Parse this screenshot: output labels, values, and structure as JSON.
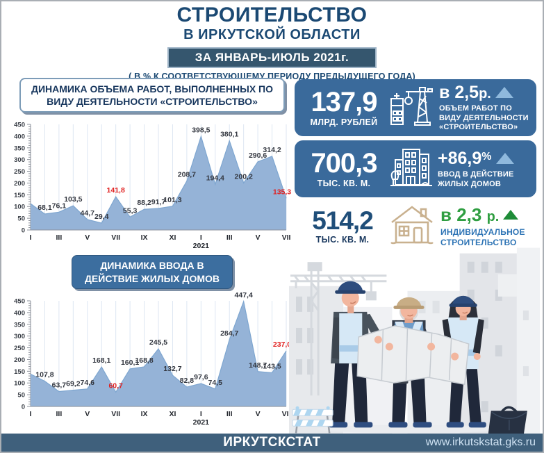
{
  "header": {
    "title": "СТРОИТЕЛЬСТВО",
    "subtitle": "В ИРКУТСКОЙ ОБЛАСТИ",
    "period_badge": "ЗА ЯНВАРЬ-ИЮЛЬ 2021г.",
    "note": "( В % К СООТВЕТСТВУЮЩЕМУ ПЕРИОДУ ПРЕДЫДУЩЕГО ГОДА)"
  },
  "stats": [
    {
      "value": "137,9",
      "unit": "МЛРД. РУБЛЕЙ",
      "change": "в 2,5",
      "change_suffix": "р.",
      "trend": "up",
      "icon": "crane-building-icon",
      "desc": "ОБЪЕМ РАБОТ ПО ВИДУ ДЕЯТЕЛЬНОСТИ «СТРОИТЕЛЬСТВО»"
    },
    {
      "value": "700,3",
      "unit": "ТЫС. КВ. М.",
      "change": "+86,9",
      "change_suffix": "%",
      "trend": "up",
      "icon": "apartment-building-icon",
      "desc": "ВВОД В ДЕЙСТВИЕ ЖИЛЫХ ДОМОВ"
    },
    {
      "value": "514,2",
      "unit": "ТЫС. КВ. М.",
      "change": "в 2,3",
      "change_suffix": "р.",
      "trend": "up",
      "icon": "house-icon",
      "desc": "ИНДИВИДУАЛЬНОЕ СТРОИТЕЛЬСТВО"
    }
  ],
  "footer": {
    "org": "ИРКУТСКСТАТ",
    "website": "www.irkutskstat.gks.ru"
  },
  "colors": {
    "dark_navy_text": "#1b4973",
    "badge_bg": "#35566e",
    "card_bg": "#3a6a9b",
    "footer_bg": "#3f607c",
    "area_fill": "#95b3d7",
    "area_line": "#7ea6d0",
    "gridline": "#dce6f2",
    "red_label": "#e02020",
    "green_accent": "#2f9e41",
    "triangle_blue": "#8fb9dd",
    "house_icon_tan": "#c9b18f",
    "url_text": "#cfe2f3"
  },
  "chart_data": [
    {
      "type": "area",
      "title": "ДИНАМИКА ОБЪЕМА РАБОТ, ВЫПОЛНЕННЫХ ПО ВИДУ ДЕЯТЕЛЬНОСТИ «СТРОИТЕЛЬСТВО»",
      "categories": [
        "I",
        "II",
        "III",
        "IV",
        "V",
        "VI",
        "VII",
        "VIII",
        "IX",
        "X",
        "XI",
        "XII",
        "I",
        "II",
        "III",
        "IV",
        "V",
        "VI",
        "VII"
      ],
      "x_tick_indices": [
        0,
        2,
        4,
        6,
        8,
        10,
        12,
        14,
        16,
        18
      ],
      "year_label": "2021",
      "year_label_index": 12,
      "values": [
        112,
        68.1,
        76.1,
        103.5,
        44.7,
        29.4,
        141.8,
        55.3,
        88.2,
        91.7,
        101.3,
        208.7,
        398.5,
        194.4,
        380.1,
        200.2,
        290.6,
        314.2,
        135.3
      ],
      "point_labels": [
        "",
        "68,1",
        "76,1",
        "103,5",
        "44,7",
        "29,4",
        "141,8",
        "55,3",
        "88,2",
        "91,7",
        "101,3",
        "208,7",
        "398,5",
        "194,4",
        "380,1",
        "200,2",
        "290,6",
        "314,2",
        "135,3"
      ],
      "red_label_indices": [
        6,
        18
      ],
      "ylim": [
        0,
        450
      ],
      "ytick_step": 50,
      "grid": "vertical",
      "area_color": "#95b3d7",
      "line_color": "#7ea6d0"
    },
    {
      "type": "area",
      "title": "ДИНАМИКА ВВОДА В ДЕЙСТВИЕ ЖИЛЫХ ДОМОВ",
      "categories": [
        "I",
        "II",
        "III",
        "IV",
        "V",
        "VI",
        "VII",
        "VIII",
        "IX",
        "X",
        "XI",
        "XII",
        "I",
        "II",
        "III",
        "IV",
        "V",
        "VI",
        "VII"
      ],
      "x_tick_indices": [
        0,
        2,
        4,
        6,
        8,
        10,
        12,
        14,
        16,
        18
      ],
      "year_label": "2021",
      "year_label_index": 12,
      "values": [
        138,
        107.8,
        63.7,
        69.2,
        74.6,
        168.1,
        60.7,
        160.1,
        168.8,
        245.5,
        132.7,
        82.8,
        97.6,
        74.5,
        284.7,
        447.4,
        148.7,
        143.5,
        237.0
      ],
      "point_labels": [
        "",
        "107,8",
        "63,7",
        "69,2",
        "74,6",
        "168,1",
        "60,7",
        "160,1",
        "168,8",
        "245,5",
        "132,7",
        "82,8",
        "97,6",
        "74,5",
        "284,7",
        "447,4",
        "148,7",
        "143,5",
        "237,0"
      ],
      "red_label_indices": [
        6,
        18
      ],
      "ylim": [
        0,
        450
      ],
      "ytick_step": 50,
      "grid": "vertical",
      "area_color": "#95b3d7",
      "line_color": "#7ea6d0"
    }
  ]
}
